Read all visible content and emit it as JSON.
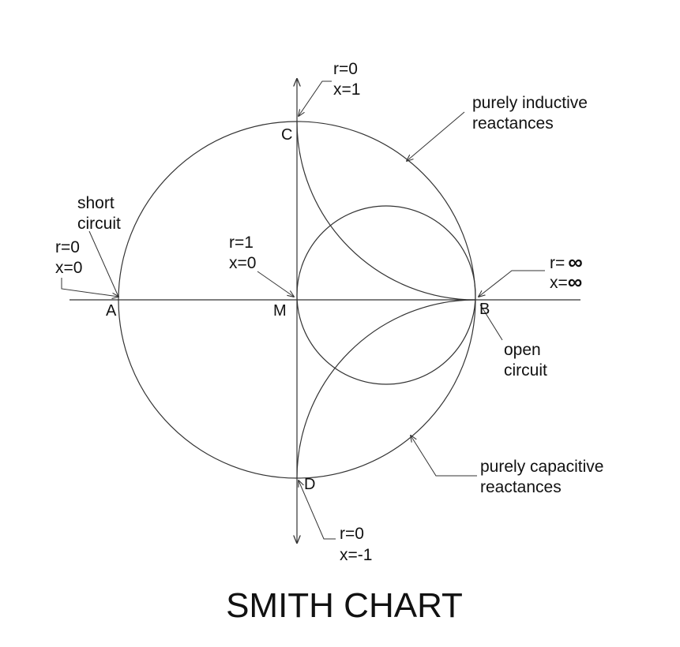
{
  "title": "SMITH CHART",
  "points": {
    "A": "A",
    "B": "B",
    "C": "C",
    "D": "D",
    "M": "M"
  },
  "annotations": {
    "short_circuit": {
      "line1": "short",
      "line2": "circuit"
    },
    "A_values": {
      "r": "r=0",
      "x": "x=0"
    },
    "M_values": {
      "r": "r=1",
      "x": "x=0"
    },
    "C_values": {
      "r": "r=0",
      "x": "x=1"
    },
    "D_values": {
      "r": "r=0",
      "x": "x=-1"
    },
    "B_values": {
      "r": "r=",
      "x": "x=",
      "infinity": "∞"
    },
    "open_circuit": {
      "line1": "open",
      "line2": "circuit"
    },
    "inductive": {
      "line1": "purely inductive",
      "line2": "reactances"
    },
    "capacitive": {
      "line1": "purely capacitive",
      "line2": "reactances"
    }
  },
  "colors": {
    "stroke": "#333333",
    "text": "#111111",
    "background": "#ffffff"
  }
}
